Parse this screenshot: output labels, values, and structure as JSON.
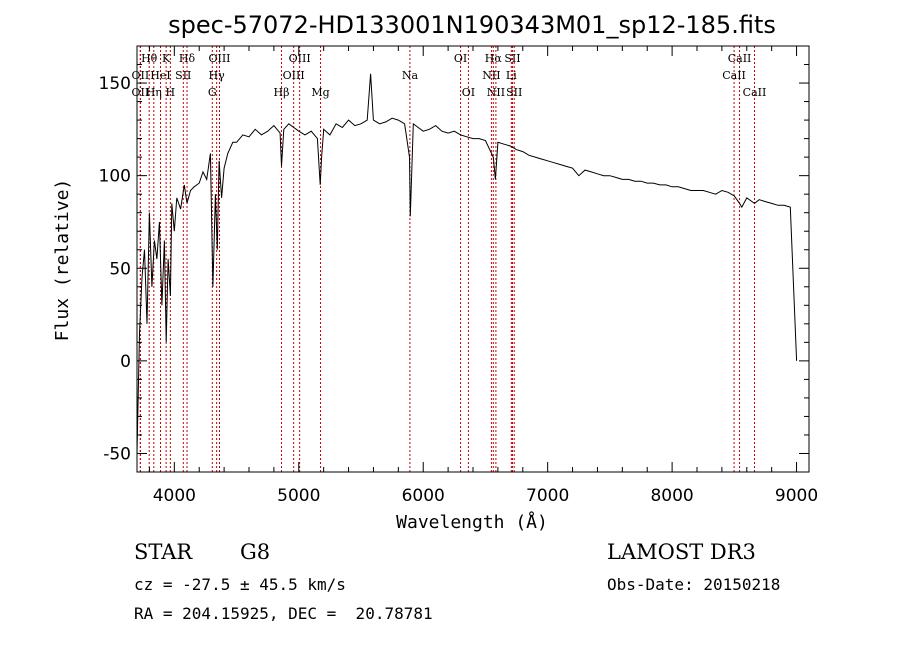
{
  "chart_data": {
    "type": "line",
    "title": "spec-57072-HD133001N190343M01_sp12-185.fits",
    "xlabel": "Wavelength (Å)",
    "ylabel": "Flux (relative)",
    "xlim": [
      3700,
      9100
    ],
    "ylim": [
      -60,
      170
    ],
    "xticks": [
      4000,
      5000,
      6000,
      7000,
      8000,
      9000
    ],
    "yticks": [
      -50,
      0,
      50,
      100,
      150
    ],
    "series": [
      {
        "name": "flux",
        "x": [
          3700,
          3720,
          3740,
          3760,
          3780,
          3800,
          3820,
          3840,
          3860,
          3880,
          3900,
          3920,
          3935,
          3950,
          3968,
          3980,
          4000,
          4020,
          4050,
          4080,
          4102,
          4130,
          4160,
          4200,
          4230,
          4260,
          4290,
          4310,
          4330,
          4345,
          4360,
          4380,
          4400,
          4430,
          4470,
          4500,
          4550,
          4600,
          4650,
          4700,
          4750,
          4800,
          4850,
          4861,
          4880,
          4920,
          4960,
          5000,
          5050,
          5100,
          5150,
          5172,
          5183,
          5200,
          5250,
          5300,
          5350,
          5400,
          5450,
          5500,
          5550,
          5577,
          5600,
          5650,
          5700,
          5750,
          5800,
          5850,
          5890,
          5896,
          5920,
          5960,
          6000,
          6050,
          6100,
          6150,
          6200,
          6250,
          6300,
          6350,
          6400,
          6450,
          6500,
          6563,
          6580,
          6600,
          6650,
          6700,
          6750,
          6800,
          6850,
          6900,
          6950,
          7000,
          7050,
          7100,
          7150,
          7200,
          7250,
          7300,
          7350,
          7400,
          7450,
          7500,
          7550,
          7600,
          7650,
          7700,
          7750,
          7800,
          7850,
          7900,
          7950,
          8000,
          8050,
          8100,
          8150,
          8200,
          8250,
          8300,
          8350,
          8400,
          8450,
          8500,
          8542,
          8560,
          8600,
          8662,
          8700,
          8750,
          8800,
          8850,
          8900,
          8950,
          9000
        ],
        "y": [
          -50,
          15,
          45,
          60,
          20,
          80,
          40,
          65,
          55,
          75,
          30,
          65,
          10,
          55,
          35,
          85,
          70,
          88,
          82,
          95,
          85,
          92,
          94,
          96,
          102,
          98,
          112,
          40,
          90,
          60,
          108,
          88,
          104,
          112,
          118,
          118,
          122,
          121,
          125,
          122,
          124,
          127,
          123,
          105,
          125,
          128,
          126,
          124,
          122,
          124,
          120,
          95,
          110,
          125,
          122,
          128,
          126,
          130,
          127,
          128,
          130,
          155,
          130,
          128,
          129,
          131,
          130,
          128,
          110,
          78,
          128,
          126,
          124,
          125,
          127,
          124,
          123,
          124,
          122,
          121,
          120,
          120,
          119,
          110,
          98,
          118,
          117,
          116,
          114,
          113,
          111,
          110,
          109,
          108,
          107,
          106,
          105,
          104,
          100,
          103,
          102,
          101,
          100,
          100,
          99,
          98,
          98,
          97,
          97,
          96,
          96,
          95,
          95,
          94,
          94,
          93,
          92,
          92,
          92,
          91,
          90,
          92,
          91,
          89,
          85,
          83,
          88,
          85,
          87,
          86,
          85,
          84,
          84,
          83,
          0
        ]
      }
    ],
    "lines": [
      {
        "label": "Hθ",
        "wavelength": 3798,
        "row": 1
      },
      {
        "label": "OII",
        "wavelength": 3727,
        "row": 2
      },
      {
        "label": "OII",
        "wavelength": 3727,
        "row": 3
      },
      {
        "label": "Hη",
        "wavelength": 3835,
        "row": 3
      },
      {
        "label": "HeI",
        "wavelength": 3889,
        "row": 2
      },
      {
        "label": "K",
        "wavelength": 3934,
        "row": 1
      },
      {
        "label": "H",
        "wavelength": 3968,
        "row": 3
      },
      {
        "label": "Hδ",
        "wavelength": 4102,
        "row": 1
      },
      {
        "label": "SII",
        "wavelength": 4072,
        "row": 2
      },
      {
        "label": "OIII",
        "wavelength": 4363,
        "row": 1
      },
      {
        "label": "Hγ",
        "wavelength": 4340,
        "row": 2
      },
      {
        "label": "G",
        "wavelength": 4305,
        "row": 3
      },
      {
        "label": "Hβ",
        "wavelength": 4861,
        "row": 3
      },
      {
        "label": "OIII",
        "wavelength": 5007,
        "row": 1
      },
      {
        "label": "OIII",
        "wavelength": 4959,
        "row": 2
      },
      {
        "label": "Mg",
        "wavelength": 5175,
        "row": 3
      },
      {
        "label": "Na",
        "wavelength": 5893,
        "row": 2
      },
      {
        "label": "OI",
        "wavelength": 6300,
        "row": 1
      },
      {
        "label": "OI",
        "wavelength": 6363,
        "row": 3
      },
      {
        "label": "Hα",
        "wavelength": 6563,
        "row": 1
      },
      {
        "label": "NII",
        "wavelength": 6548,
        "row": 2
      },
      {
        "label": "NII",
        "wavelength": 6584,
        "row": 3
      },
      {
        "label": "SII",
        "wavelength": 6717,
        "row": 1
      },
      {
        "label": "Li",
        "wavelength": 6708,
        "row": 2
      },
      {
        "label": "SII",
        "wavelength": 6731,
        "row": 3
      },
      {
        "label": "CaII",
        "wavelength": 8542,
        "row": 1
      },
      {
        "label": "CaII",
        "wavelength": 8498,
        "row": 2
      },
      {
        "label": "CaII",
        "wavelength": 8662,
        "row": 3
      }
    ]
  },
  "info": {
    "object_class": "STAR",
    "subclass": "G8",
    "survey": "LAMOST DR3",
    "redshift": "cz = -27.5 ± 45.5 km/s",
    "obs_date": "Obs-Date: 20150218",
    "coords": "RA = 204.15925, DEC =  20.78781"
  }
}
